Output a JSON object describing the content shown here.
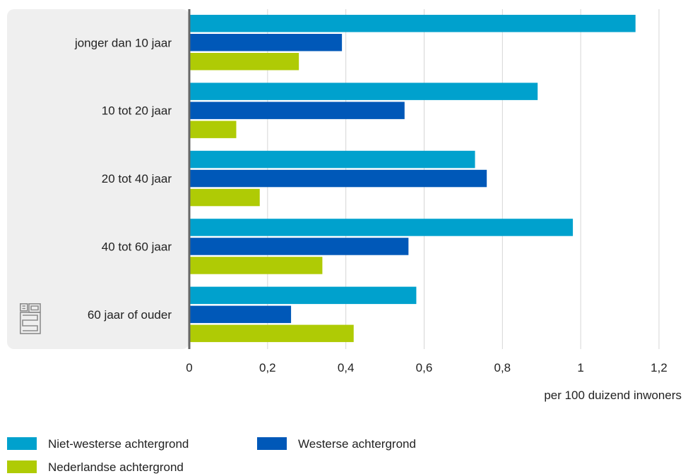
{
  "chart_data": {
    "type": "bar",
    "orientation": "horizontal",
    "categories": [
      "jonger dan 10 jaar",
      "10 tot 20 jaar",
      "20 tot 40 jaar",
      "40 tot 60 jaar",
      "60 jaar of ouder"
    ],
    "series": [
      {
        "name": "Niet-westerse achtergrond",
        "color": "#00a1cd",
        "values": [
          1.14,
          0.89,
          0.73,
          0.98,
          0.58
        ]
      },
      {
        "name": "Westerse achtergrond",
        "color": "#0058b8",
        "values": [
          0.39,
          0.55,
          0.76,
          0.56,
          0.26
        ]
      },
      {
        "name": "Nederlandse achtergrond",
        "color": "#afcb05",
        "values": [
          0.28,
          0.12,
          0.18,
          0.34,
          0.42
        ]
      }
    ],
    "xlim": [
      0,
      1.2
    ],
    "xticks": [
      "0",
      "0,2",
      "0,4",
      "0,6",
      "0,8",
      "1",
      "1,2"
    ],
    "xlabel": "per 100 duizend inwoners",
    "grid": true,
    "legend_position": "bottom-left",
    "logo_icon": "cbs-logo-icon"
  }
}
